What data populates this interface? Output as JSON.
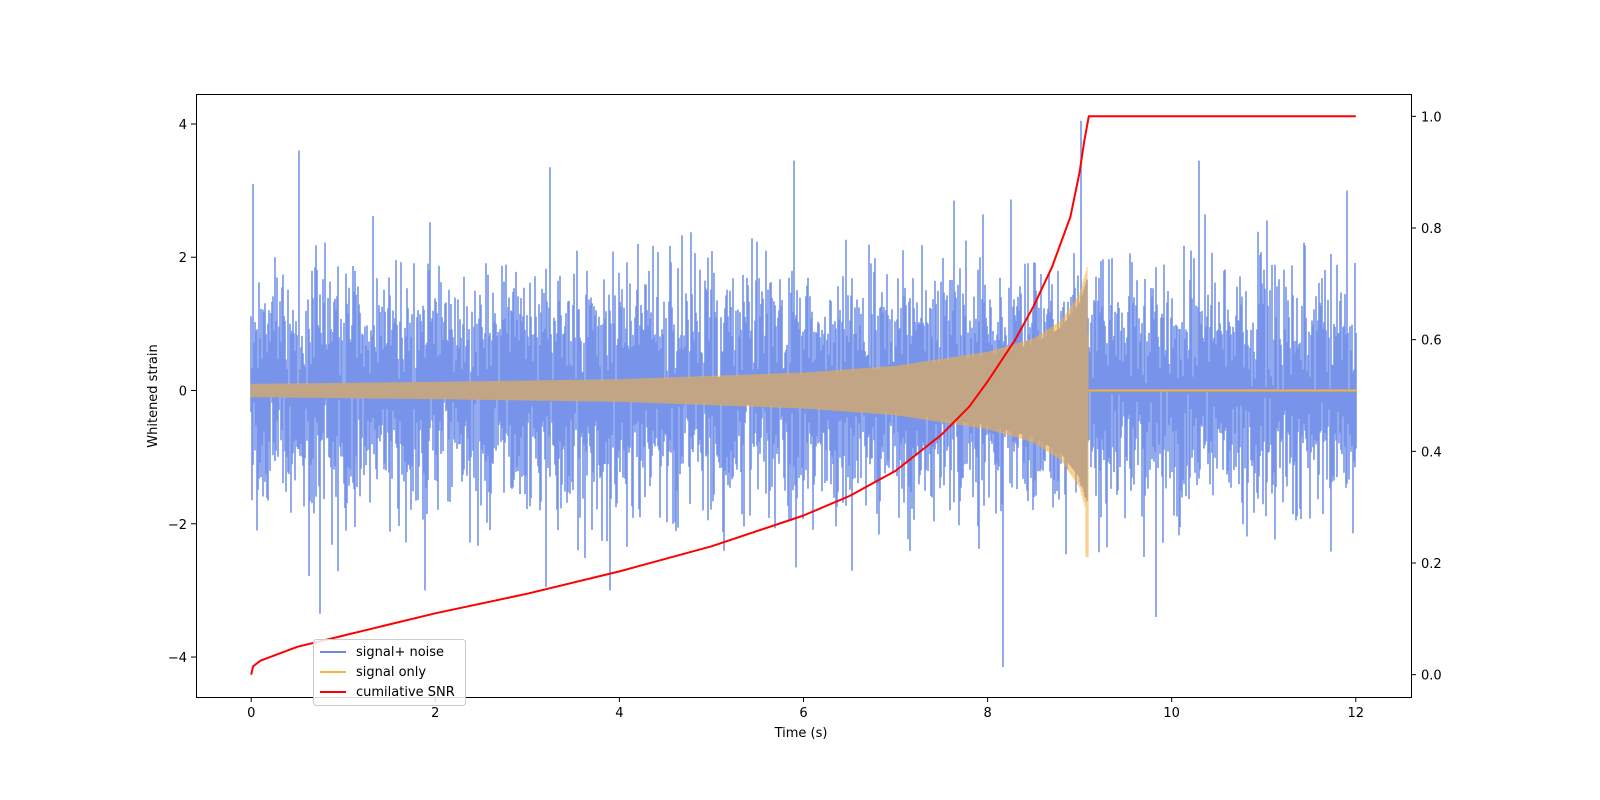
{
  "chart_data": {
    "type": "line",
    "title": "",
    "xlabel": "Time (s)",
    "ylabel": "Whitened strain",
    "ylabel_right": "",
    "xlim": [
      -0.6,
      12.6
    ],
    "ylim": [
      -4.6,
      4.45
    ],
    "ylim_right": [
      -0.04,
      1.04
    ],
    "xticks": [
      0,
      2,
      4,
      6,
      8,
      10,
      12
    ],
    "yticks": [
      -4,
      -2,
      0,
      2,
      4
    ],
    "yticks_right": [
      0.0,
      0.2,
      0.4,
      0.6,
      0.8,
      1.0
    ],
    "grid": false,
    "legend_position": "lower-left",
    "merger_time": 9.1,
    "series": [
      {
        "name": "signal+ noise",
        "color": "#6b8be8",
        "axis": "left",
        "description_values": {
          "t_start": 0,
          "t_end": 12,
          "noise_sigma": 0.8,
          "approx_min": -4.15,
          "approx_max": 4.05,
          "notable_peaks": [
            [
              0.02,
              3.1
            ],
            [
              0.52,
              3.6
            ],
            [
              3.25,
              3.35
            ],
            [
              5.9,
              3.45
            ],
            [
              9.02,
              4.05
            ],
            [
              10.3,
              3.45
            ]
          ],
          "notable_troughs": [
            [
              0.75,
              -3.35
            ],
            [
              8.17,
              -4.15
            ],
            [
              9.83,
              -3.4
            ],
            [
              3.2,
              -2.95
            ]
          ]
        }
      },
      {
        "name": "signal only",
        "color": "#f5b041",
        "axis": "left",
        "description_values": {
          "t_start": 0,
          "t_end": 12,
          "envelope": [
            [
              0,
              0.1
            ],
            [
              2,
              0.13
            ],
            [
              4,
              0.17
            ],
            [
              6,
              0.27
            ],
            [
              7,
              0.37
            ],
            [
              8,
              0.58
            ],
            [
              8.5,
              0.78
            ],
            [
              8.8,
              1.05
            ],
            [
              9.0,
              1.45
            ],
            [
              9.08,
              1.85
            ],
            [
              9.1,
              0.02
            ],
            [
              12,
              0.02
            ]
          ],
          "negative_extreme": [
            9.08,
            -2.5
          ]
        }
      },
      {
        "name": "cumilative SNR",
        "color": "#ff0000",
        "axis": "right",
        "x": [
          0,
          0.02,
          0.1,
          0.5,
          1,
          2,
          3,
          4,
          5,
          6,
          6.5,
          7,
          7.5,
          7.8,
          8,
          8.3,
          8.5,
          8.7,
          8.9,
          9.0,
          9.05,
          9.1,
          12
        ],
        "y": [
          0.0,
          0.015,
          0.025,
          0.05,
          0.07,
          0.11,
          0.145,
          0.185,
          0.23,
          0.285,
          0.32,
          0.365,
          0.43,
          0.48,
          0.525,
          0.6,
          0.66,
          0.73,
          0.82,
          0.9,
          0.955,
          1.0,
          1.0
        ]
      }
    ]
  }
}
